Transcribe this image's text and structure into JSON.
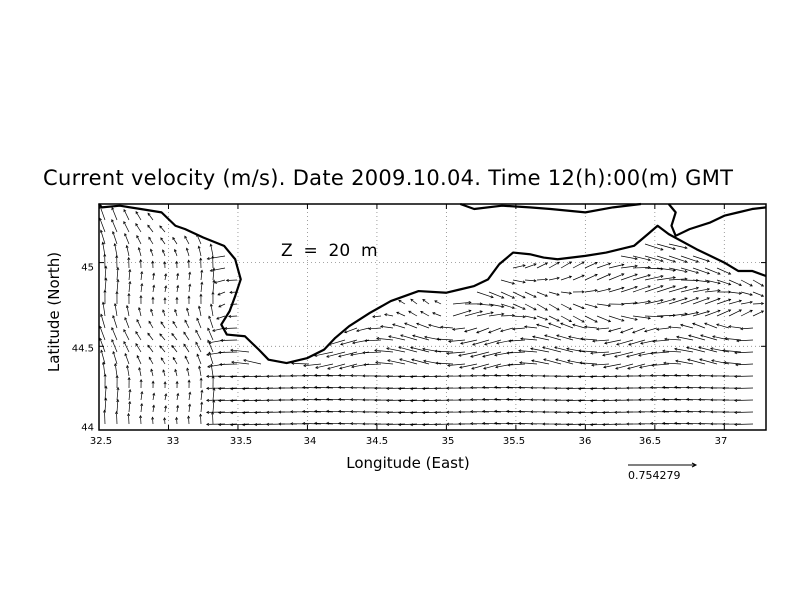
{
  "title": "Current velocity (m/s). Date 2009.10.04. Time 12(h):00(m) GMT",
  "depth_label": "Z  =  20  m",
  "chart_data": {
    "type": "vector-field",
    "title": "Current velocity (m/s). Date 2009.10.04. Time 12(h):00(m) GMT",
    "xlabel": "Longitude (East)",
    "ylabel": "Latitude (North)",
    "xlim": [
      32.5,
      37.3
    ],
    "ylim": [
      44.0,
      45.35
    ],
    "x_ticks": [
      "32.5",
      "33",
      "33.5",
      "34",
      "34.5",
      "35",
      "35.5",
      "36",
      "36.5",
      "37"
    ],
    "x_tick_values": [
      32.5,
      33,
      33.5,
      34,
      34.5,
      35,
      35.5,
      36,
      36.5,
      37
    ],
    "y_ticks": [
      "44",
      "44.5",
      "45"
    ],
    "y_tick_values": [
      44,
      44.5,
      45
    ],
    "grid": true,
    "depth": "Z = 20 m",
    "reference_vector": {
      "value": 0.754279,
      "label": "0.754279"
    },
    "coastline": [
      [
        32.5,
        45.35
      ],
      [
        32.52,
        45.33
      ],
      [
        32.65,
        45.34
      ],
      [
        32.8,
        45.32
      ],
      [
        32.95,
        45.3
      ],
      [
        33.05,
        45.22
      ],
      [
        33.12,
        45.2
      ],
      [
        33.25,
        45.15
      ],
      [
        33.4,
        45.1
      ],
      [
        33.48,
        45.02
      ],
      [
        33.52,
        44.9
      ],
      [
        33.48,
        44.8
      ],
      [
        33.44,
        44.71
      ],
      [
        33.38,
        44.63
      ],
      [
        33.42,
        44.57
      ],
      [
        33.55,
        44.56
      ],
      [
        33.65,
        44.48
      ],
      [
        33.72,
        44.42
      ],
      [
        33.85,
        44.4
      ],
      [
        34.0,
        44.43
      ],
      [
        34.12,
        44.48
      ],
      [
        34.2,
        44.55
      ],
      [
        34.3,
        44.62
      ],
      [
        34.45,
        44.7
      ],
      [
        34.6,
        44.77
      ],
      [
        34.8,
        44.83
      ],
      [
        35.0,
        44.82
      ],
      [
        35.1,
        44.84
      ],
      [
        35.2,
        44.86
      ],
      [
        35.3,
        44.9
      ],
      [
        35.38,
        44.99
      ],
      [
        35.48,
        45.06
      ],
      [
        35.6,
        45.05
      ],
      [
        35.7,
        45.03
      ],
      [
        35.8,
        45.02
      ],
      [
        36.0,
        45.04
      ],
      [
        36.15,
        45.06
      ],
      [
        36.35,
        45.1
      ],
      [
        36.45,
        45.17
      ],
      [
        36.52,
        45.22
      ],
      [
        36.6,
        45.17
      ],
      [
        36.8,
        45.08
      ],
      [
        37.0,
        45.0
      ],
      [
        37.1,
        44.95
      ],
      [
        37.2,
        44.95
      ],
      [
        37.3,
        44.92
      ]
    ],
    "land_north": [
      [
        35.1,
        45.35
      ],
      [
        35.2,
        45.32
      ],
      [
        35.4,
        45.34
      ],
      [
        35.6,
        45.33
      ],
      [
        35.75,
        45.32
      ],
      [
        36.0,
        45.3
      ],
      [
        36.2,
        45.33
      ],
      [
        36.4,
        45.35
      ]
    ],
    "land_north_east": [
      [
        36.6,
        45.35
      ],
      [
        36.65,
        45.3
      ],
      [
        36.62,
        45.22
      ],
      [
        36.65,
        45.16
      ],
      [
        36.75,
        45.2
      ],
      [
        36.9,
        45.24
      ],
      [
        37.0,
        45.28
      ],
      [
        37.1,
        45.3
      ],
      [
        37.2,
        45.32
      ],
      [
        37.3,
        45.33
      ]
    ]
  }
}
